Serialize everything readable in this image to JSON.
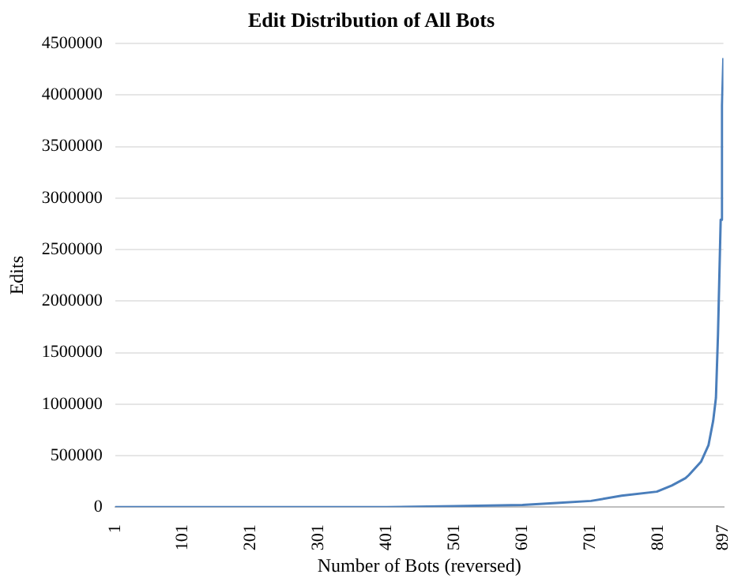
{
  "chart_data": {
    "type": "line",
    "title": "Edit Distribution of All Bots",
    "xlabel": "Number of Bots (reversed)",
    "ylabel": "Edits",
    "x": [
      1,
      101,
      201,
      301,
      401,
      501,
      601,
      651,
      702,
      747,
      799,
      821,
      841,
      846,
      864,
      875,
      882,
      886,
      889,
      893,
      895,
      897
    ],
    "series": [
      {
        "color": "#4a7ebb",
        "values": [
          0,
          0,
          0,
          0,
          0,
          10000,
          20000,
          40000,
          60000,
          110000,
          150000,
          210000,
          280000,
          310000,
          440000,
          600000,
          840000,
          1060000,
          1670000,
          2790000,
          3900000,
          4360000
        ]
      }
    ],
    "xlim": [
      1,
      897
    ],
    "xticks": [
      1,
      101,
      201,
      301,
      401,
      501,
      601,
      701,
      801,
      897
    ],
    "ylim": [
      0,
      4500000
    ],
    "yticks": [
      0,
      500000,
      1000000,
      1500000,
      2000000,
      2500000,
      3000000,
      3500000,
      4000000,
      4500000
    ],
    "grid": "y",
    "legend": false,
    "marker": "none",
    "line_style": "solid"
  }
}
